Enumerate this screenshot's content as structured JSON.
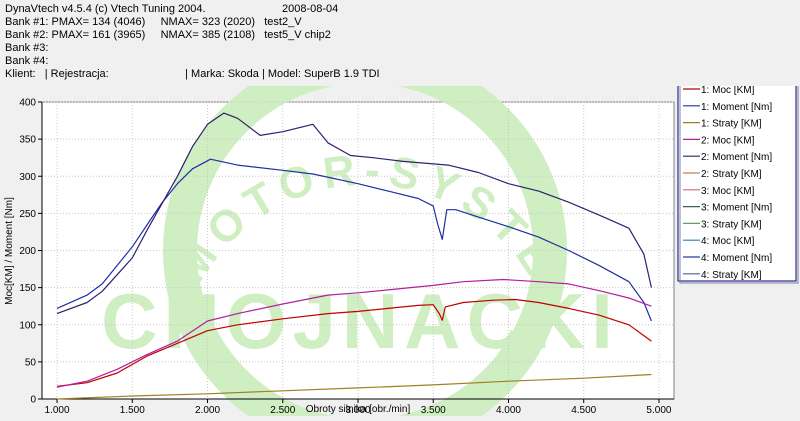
{
  "header": {
    "app_title": "DynaVtech v4.5.4 (c) Vtech Tuning 2004.",
    "date": "2008-08-04",
    "bank1": "Bank #1: PMAX= 134 (4046)     NMAX= 323 (2020)   test2_V",
    "bank2": "Bank #2: PMAX= 161 (3965)     NMAX= 385 (2108)   test5_V chip2",
    "bank3": "Bank #3:",
    "bank4": "Bank #4:",
    "client": "Klient:   | Rejestracja:                         | Marka: Skoda | Model: SuperB 1.9 TDI"
  },
  "watermark": {
    "arc_text": "MOTOR-SYSTEM",
    "main_text": "CHOJNACKI",
    "color": "#cfeec2"
  },
  "chart_data": {
    "type": "line",
    "xlabel": "Obroty silnika [obr./min]",
    "ylabel": "Moc[KM] / Moment [Nm]",
    "xlim": [
      900,
      5100
    ],
    "ylim": [
      0,
      400
    ],
    "x_ticks": [
      1000,
      1500,
      2000,
      2500,
      3000,
      3500,
      4000,
      4500,
      5000
    ],
    "x_tick_labels": [
      "1.000",
      "1.500",
      "2.000",
      "2.500",
      "3.000",
      "3.500",
      "4.000",
      "4.500",
      "5.000"
    ],
    "y_ticks": [
      0,
      50,
      100,
      150,
      200,
      250,
      300,
      350,
      400
    ],
    "y_tick_labels": [
      "0",
      "50",
      "100",
      "150",
      "200",
      "250",
      "300",
      "350",
      "400"
    ],
    "legend_position": "right",
    "series": [
      {
        "name": "1: Moc [KM]",
        "color": "#c00000",
        "points": [
          [
            1000,
            17
          ],
          [
            1200,
            22
          ],
          [
            1400,
            35
          ],
          [
            1600,
            58
          ],
          [
            1800,
            75
          ],
          [
            2000,
            92
          ],
          [
            2200,
            100
          ],
          [
            2500,
            108
          ],
          [
            2800,
            115
          ],
          [
            3000,
            118
          ],
          [
            3200,
            122
          ],
          [
            3400,
            126
          ],
          [
            3500,
            127
          ],
          [
            3540,
            115
          ],
          [
            3560,
            106
          ],
          [
            3580,
            124
          ],
          [
            3700,
            130
          ],
          [
            3900,
            133
          ],
          [
            4046,
            134
          ],
          [
            4200,
            130
          ],
          [
            4400,
            122
          ],
          [
            4600,
            113
          ],
          [
            4800,
            100
          ],
          [
            4950,
            78
          ]
        ]
      },
      {
        "name": "1: Moment [Nm]",
        "color": "#2030a0",
        "points": [
          [
            1000,
            122
          ],
          [
            1200,
            140
          ],
          [
            1300,
            155
          ],
          [
            1500,
            205
          ],
          [
            1600,
            235
          ],
          [
            1700,
            265
          ],
          [
            1800,
            290
          ],
          [
            1900,
            310
          ],
          [
            2020,
            323
          ],
          [
            2200,
            315
          ],
          [
            2500,
            308
          ],
          [
            2700,
            303
          ],
          [
            3000,
            290
          ],
          [
            3200,
            280
          ],
          [
            3400,
            270
          ],
          [
            3500,
            260
          ],
          [
            3530,
            235
          ],
          [
            3560,
            215
          ],
          [
            3590,
            255
          ],
          [
            3650,
            255
          ],
          [
            3800,
            245
          ],
          [
            4000,
            232
          ],
          [
            4200,
            218
          ],
          [
            4400,
            200
          ],
          [
            4600,
            180
          ],
          [
            4800,
            158
          ],
          [
            4900,
            130
          ],
          [
            4950,
            105
          ]
        ]
      },
      {
        "name": "1: Straty [KM]",
        "color": "#a08020",
        "points": [
          [
            1000,
            0
          ],
          [
            1500,
            4
          ],
          [
            2000,
            7
          ],
          [
            2500,
            11
          ],
          [
            3000,
            15
          ],
          [
            3500,
            19
          ],
          [
            4000,
            24
          ],
          [
            4500,
            28
          ],
          [
            4950,
            33
          ]
        ]
      },
      {
        "name": "2: Moc [KM]",
        "color": "#b020a0",
        "points": [
          [
            1000,
            16
          ],
          [
            1200,
            24
          ],
          [
            1400,
            40
          ],
          [
            1600,
            60
          ],
          [
            1800,
            78
          ],
          [
            2000,
            105
          ],
          [
            2200,
            115
          ],
          [
            2500,
            128
          ],
          [
            2800,
            140
          ],
          [
            3000,
            143
          ],
          [
            3200,
            147
          ],
          [
            3500,
            153
          ],
          [
            3700,
            158
          ],
          [
            3965,
            161
          ],
          [
            4200,
            158
          ],
          [
            4400,
            155
          ],
          [
            4600,
            146
          ],
          [
            4800,
            136
          ],
          [
            4950,
            125
          ]
        ]
      },
      {
        "name": "2: Moment [Nm]",
        "color": "#302070",
        "points": [
          [
            1000,
            115
          ],
          [
            1200,
            130
          ],
          [
            1300,
            145
          ],
          [
            1500,
            190
          ],
          [
            1600,
            228
          ],
          [
            1800,
            300
          ],
          [
            1900,
            340
          ],
          [
            2000,
            370
          ],
          [
            2108,
            385
          ],
          [
            2200,
            378
          ],
          [
            2350,
            355
          ],
          [
            2500,
            360
          ],
          [
            2700,
            370
          ],
          [
            2800,
            345
          ],
          [
            2950,
            328
          ],
          [
            3100,
            325
          ],
          [
            3300,
            320
          ],
          [
            3600,
            315
          ],
          [
            3800,
            305
          ],
          [
            4000,
            290
          ],
          [
            4200,
            280
          ],
          [
            4400,
            265
          ],
          [
            4600,
            248
          ],
          [
            4800,
            230
          ],
          [
            4900,
            195
          ],
          [
            4950,
            150
          ]
        ]
      },
      {
        "name": "2: Straty [KM]",
        "color": "#c08050",
        "points": []
      },
      {
        "name": "3: Moc [KM]",
        "color": "#c07070",
        "points": []
      },
      {
        "name": "3: Moment [Nm]",
        "color": "#306060",
        "points": []
      },
      {
        "name": "3: Straty [KM]",
        "color": "#60a060",
        "points": []
      },
      {
        "name": "4: Moc [KM]",
        "color": "#2080c0",
        "points": []
      },
      {
        "name": "4: Moment [Nm]",
        "color": "#2040a0",
        "points": []
      },
      {
        "name": "4: Straty [KM]",
        "color": "#506090",
        "points": []
      }
    ]
  }
}
